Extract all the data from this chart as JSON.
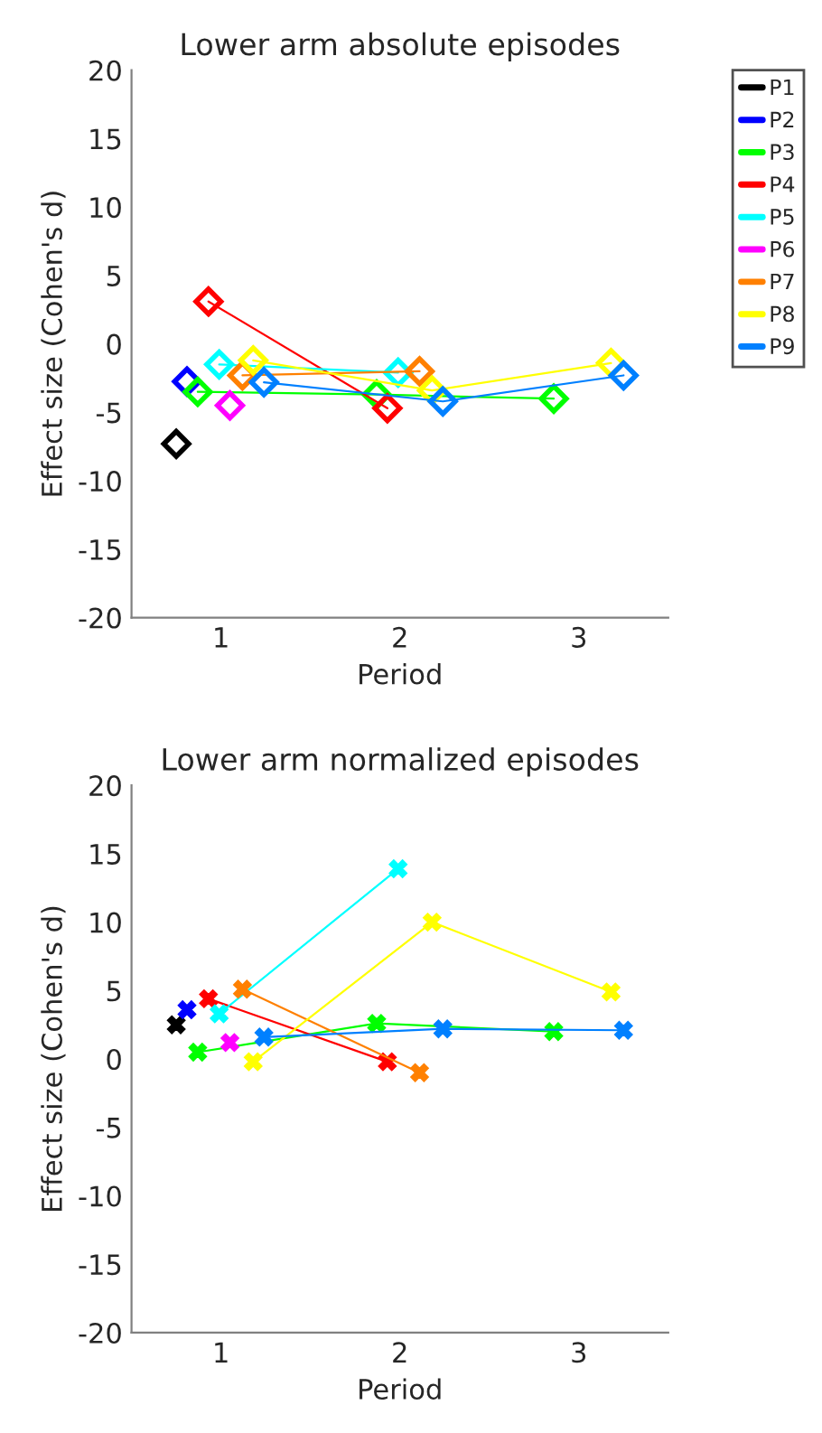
{
  "chart_data": [
    {
      "type": "line",
      "title": "Lower arm absolute episodes",
      "xlabel": "Period",
      "ylabel": "Effect size (Cohen's d)",
      "xlim": [
        0.5,
        3.5
      ],
      "ylim": [
        -20,
        20
      ],
      "xticks": [
        1,
        2,
        3
      ],
      "yticks": [
        -20,
        -15,
        -10,
        -5,
        0,
        5,
        10,
        15,
        20
      ],
      "marker": "diamond",
      "grid": false,
      "legend": "top right",
      "series": [
        {
          "name": "P1",
          "color": "#000000",
          "x": [
            0.75
          ],
          "values": [
            -7.3
          ]
        },
        {
          "name": "P2",
          "color": "#0000ff",
          "x": [
            0.81
          ],
          "values": [
            -2.75
          ]
        },
        {
          "name": "P3",
          "color": "#00ff00",
          "x": [
            0.87,
            1.87,
            2.86
          ],
          "values": [
            -3.5,
            -3.7,
            -4.0
          ]
        },
        {
          "name": "P4",
          "color": "#ff0000",
          "x": [
            0.93,
            1.93
          ],
          "values": [
            3.1,
            -4.7
          ]
        },
        {
          "name": "P5",
          "color": "#00ffff",
          "x": [
            0.99,
            1.99
          ],
          "values": [
            -1.5,
            -2.1
          ]
        },
        {
          "name": "P6",
          "color": "#ff00ff",
          "x": [
            1.05
          ],
          "values": [
            -4.5
          ]
        },
        {
          "name": "P7",
          "color": "#ff8000",
          "x": [
            1.12,
            2.11
          ],
          "values": [
            -2.3,
            -2.0
          ]
        },
        {
          "name": "P8",
          "color": "#ffff00",
          "x": [
            1.18,
            2.18,
            3.18
          ],
          "values": [
            -1.2,
            -3.4,
            -1.4
          ]
        },
        {
          "name": "P9",
          "color": "#0080ff",
          "x": [
            1.24,
            2.24,
            3.25
          ],
          "values": [
            -2.8,
            -4.2,
            -2.3
          ]
        }
      ]
    },
    {
      "type": "line",
      "title": "Lower arm normalized episodes",
      "xlabel": "Period",
      "ylabel": "Effect size (Cohen's d)",
      "xlim": [
        0.5,
        3.5
      ],
      "ylim": [
        -20,
        20
      ],
      "xticks": [
        1,
        2,
        3
      ],
      "yticks": [
        -20,
        -15,
        -10,
        -5,
        0,
        5,
        10,
        15,
        20
      ],
      "marker": "cross",
      "grid": false,
      "series": [
        {
          "color": "#000000",
          "x": [
            0.75
          ],
          "values": [
            2.5
          ]
        },
        {
          "color": "#0000ff",
          "x": [
            0.81
          ],
          "values": [
            3.6
          ]
        },
        {
          "color": "#00ff00",
          "x": [
            0.87,
            1.87,
            2.86
          ],
          "values": [
            0.5,
            2.6,
            2.0
          ]
        },
        {
          "color": "#ff0000",
          "x": [
            0.93,
            1.93
          ],
          "values": [
            4.4,
            -0.2
          ]
        },
        {
          "color": "#00ffff",
          "x": [
            0.99,
            1.99
          ],
          "values": [
            3.3,
            13.9
          ]
        },
        {
          "color": "#ff00ff",
          "x": [
            1.05
          ],
          "values": [
            1.2
          ]
        },
        {
          "color": "#ff8000",
          "x": [
            1.12,
            2.11
          ],
          "values": [
            5.1,
            -1.0
          ]
        },
        {
          "color": "#ffff00",
          "x": [
            1.18,
            2.18,
            3.18
          ],
          "values": [
            -0.2,
            10.0,
            4.9
          ]
        },
        {
          "color": "#0080ff",
          "x": [
            1.24,
            2.24,
            3.25
          ],
          "values": [
            1.6,
            2.2,
            2.1
          ]
        }
      ]
    }
  ]
}
